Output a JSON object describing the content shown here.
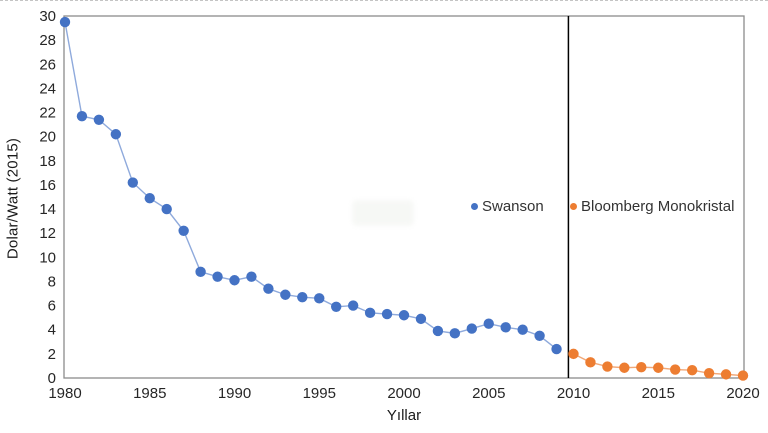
{
  "legend": {
    "swanson": "Swanson",
    "bloomberg": "Bloomberg Monokristal"
  },
  "chart_data": {
    "type": "line",
    "title": "",
    "xlabel": "Yıllar",
    "ylabel": "Dolar/Watt (2015)",
    "xlim": [
      1980,
      2020
    ],
    "ylim": [
      0,
      30
    ],
    "x_ticks": [
      1980,
      1985,
      1990,
      1995,
      2000,
      2005,
      2010,
      2015,
      2020
    ],
    "y_ticks": [
      0,
      2,
      4,
      6,
      8,
      10,
      12,
      14,
      16,
      18,
      20,
      22,
      24,
      26,
      28,
      30
    ],
    "grid": false,
    "legend_position": "inside-middle-right",
    "divider_year": 2009.7,
    "colors": {
      "frame": "#8c8c8c",
      "divider": "#000000",
      "tick_text": "#262626",
      "swanson": "#4472C4",
      "swanson_line": "#8faadc",
      "bloomberg": "#ED7D31",
      "bloomberg_line": "#f1a878"
    },
    "series": [
      {
        "name": "Swanson",
        "color": "#4472C4",
        "line_color": "#8faadc",
        "x": [
          1980,
          1981,
          1982,
          1983,
          1984,
          1985,
          1986,
          1987,
          1988,
          1989,
          1990,
          1991,
          1992,
          1993,
          1994,
          1995,
          1996,
          1997,
          1998,
          1999,
          2000,
          2001,
          2002,
          2003,
          2004,
          2005,
          2006,
          2007,
          2008,
          2009
        ],
        "values": [
          29.5,
          21.7,
          21.4,
          20.2,
          16.2,
          14.9,
          14.0,
          12.2,
          8.8,
          8.4,
          8.1,
          8.4,
          7.4,
          6.9,
          6.7,
          6.6,
          5.9,
          6.0,
          5.4,
          5.3,
          5.2,
          4.9,
          3.9,
          3.7,
          4.1,
          4.5,
          4.2,
          4.0,
          3.5,
          2.4
        ]
      },
      {
        "name": "Bloomberg Monokristal",
        "color": "#ED7D31",
        "line_color": "#f1a878",
        "x": [
          2010,
          2011,
          2012,
          2013,
          2014,
          2015,
          2016,
          2017,
          2018,
          2019,
          2020
        ],
        "values": [
          2.0,
          1.3,
          0.95,
          0.85,
          0.9,
          0.85,
          0.7,
          0.65,
          0.4,
          0.3,
          0.2
        ]
      }
    ]
  }
}
